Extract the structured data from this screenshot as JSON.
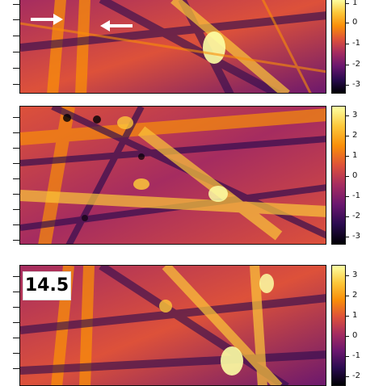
{
  "colormap": {
    "name": "inferno",
    "stops": [
      "#000004",
      "#2a0b4f",
      "#6a176e",
      "#a52c60",
      "#dd513a",
      "#f98e09",
      "#fcc73a",
      "#fcffa4"
    ]
  },
  "panels": [
    {
      "colorbar_ticks": [
        "1",
        "0",
        "-1",
        "-2",
        "-3"
      ],
      "annotation": "",
      "arrows": [
        "arrow-right",
        "arrow-left"
      ]
    },
    {
      "colorbar_ticks": [
        "3",
        "2",
        "1",
        "0",
        "-1",
        "-2",
        "-3"
      ],
      "annotation": ""
    },
    {
      "colorbar_ticks": [
        "3",
        "2",
        "1",
        "0",
        "-1",
        "-2"
      ],
      "annotation": "14.5"
    }
  ]
}
